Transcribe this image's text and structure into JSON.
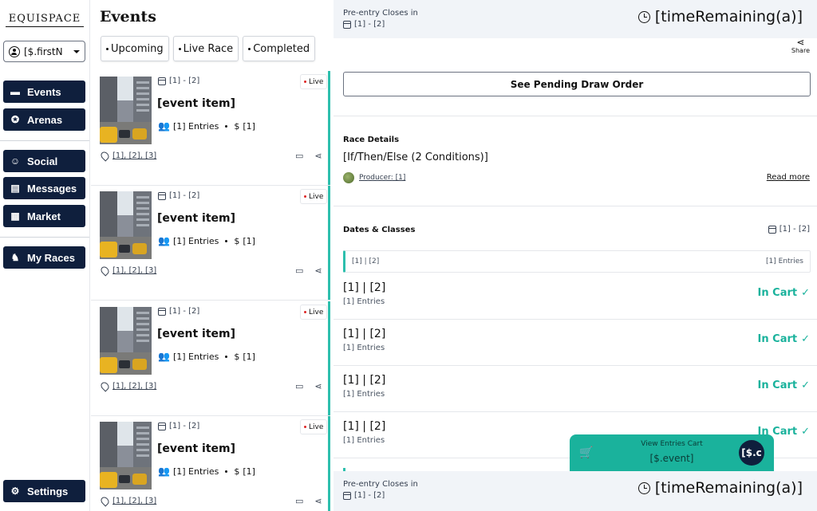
{
  "sidebar": {
    "logo_text": "EQUISPACE",
    "user_label": "[$.firstN",
    "nav": [
      {
        "label": "Events",
        "icon": "ticket-icon"
      },
      {
        "label": "Arenas",
        "icon": "medal-icon"
      },
      {
        "label": "Social",
        "icon": "group-icon"
      },
      {
        "label": "Messages",
        "icon": "chat-icon"
      },
      {
        "label": "Market",
        "icon": "store-icon"
      },
      {
        "label": "My Races",
        "icon": "horse-icon"
      },
      {
        "label": "Settings",
        "icon": "gear-icon"
      }
    ]
  },
  "events": {
    "title": "Events",
    "tabs": [
      "Upcoming",
      "Live Race",
      "Completed"
    ],
    "items": [
      {
        "date": "[1] - [2]",
        "badge": "Live",
        "title": "[event item]",
        "entries": "[1] Entries",
        "price": "[1]",
        "location": "[1], [2], [3]"
      },
      {
        "date": "[1] - [2]",
        "badge": "Live",
        "title": "[event item]",
        "entries": "[1] Entries",
        "price": "[1]",
        "location": "[1], [2], [3]"
      },
      {
        "date": "[1] - [2]",
        "badge": "Live",
        "title": "[event item]",
        "entries": "[1] Entries",
        "price": "[1]",
        "location": "[1], [2], [3]"
      },
      {
        "date": "[1] - [2]",
        "badge": "Live",
        "title": "[event item]",
        "entries": "[1] Entries",
        "price": "[1]",
        "location": "[1], [2], [3]"
      }
    ]
  },
  "detail": {
    "top_bar": {
      "label": "Pre-entry Closes in",
      "date": "[1] - [2]",
      "timer": "[timeRemaining(a)]"
    },
    "share_label": "Share",
    "pending_button": "See Pending Draw Order",
    "race_details": {
      "heading": "Race Details",
      "conditions": "[If/Then/Else (2 Conditions)]",
      "producer": "Producer: [1]",
      "read_more": "Read more"
    },
    "dates_classes": {
      "heading": "Dates & Classes",
      "date": "[1] - [2]",
      "class_header": {
        "left": "[1] | [2]",
        "right": "[1] Entries"
      },
      "rows": [
        {
          "title": "[1] | [2]",
          "entries": "[1] Entries",
          "status": "In Cart"
        },
        {
          "title": "[1] | [2]",
          "entries": "[1] Entries",
          "status": "In Cart"
        },
        {
          "title": "[1] | [2]",
          "entries": "[1] Entries",
          "status": "In Cart"
        },
        {
          "title": "[1] | [2]",
          "entries": "[1] Entries",
          "status": "In Cart"
        }
      ]
    },
    "bottom_bar": {
      "label": "Pre-entry Closes in",
      "date": "[1] - [2]",
      "timer": "[timeRemaining(a)]"
    },
    "cart": {
      "title": "View Entries Cart",
      "value": "[$.event]",
      "badge": "[$.c"
    }
  },
  "colors": {
    "navy": "#0f1f3d",
    "teal": "#1ab29c",
    "accent": "#2dbfad"
  }
}
